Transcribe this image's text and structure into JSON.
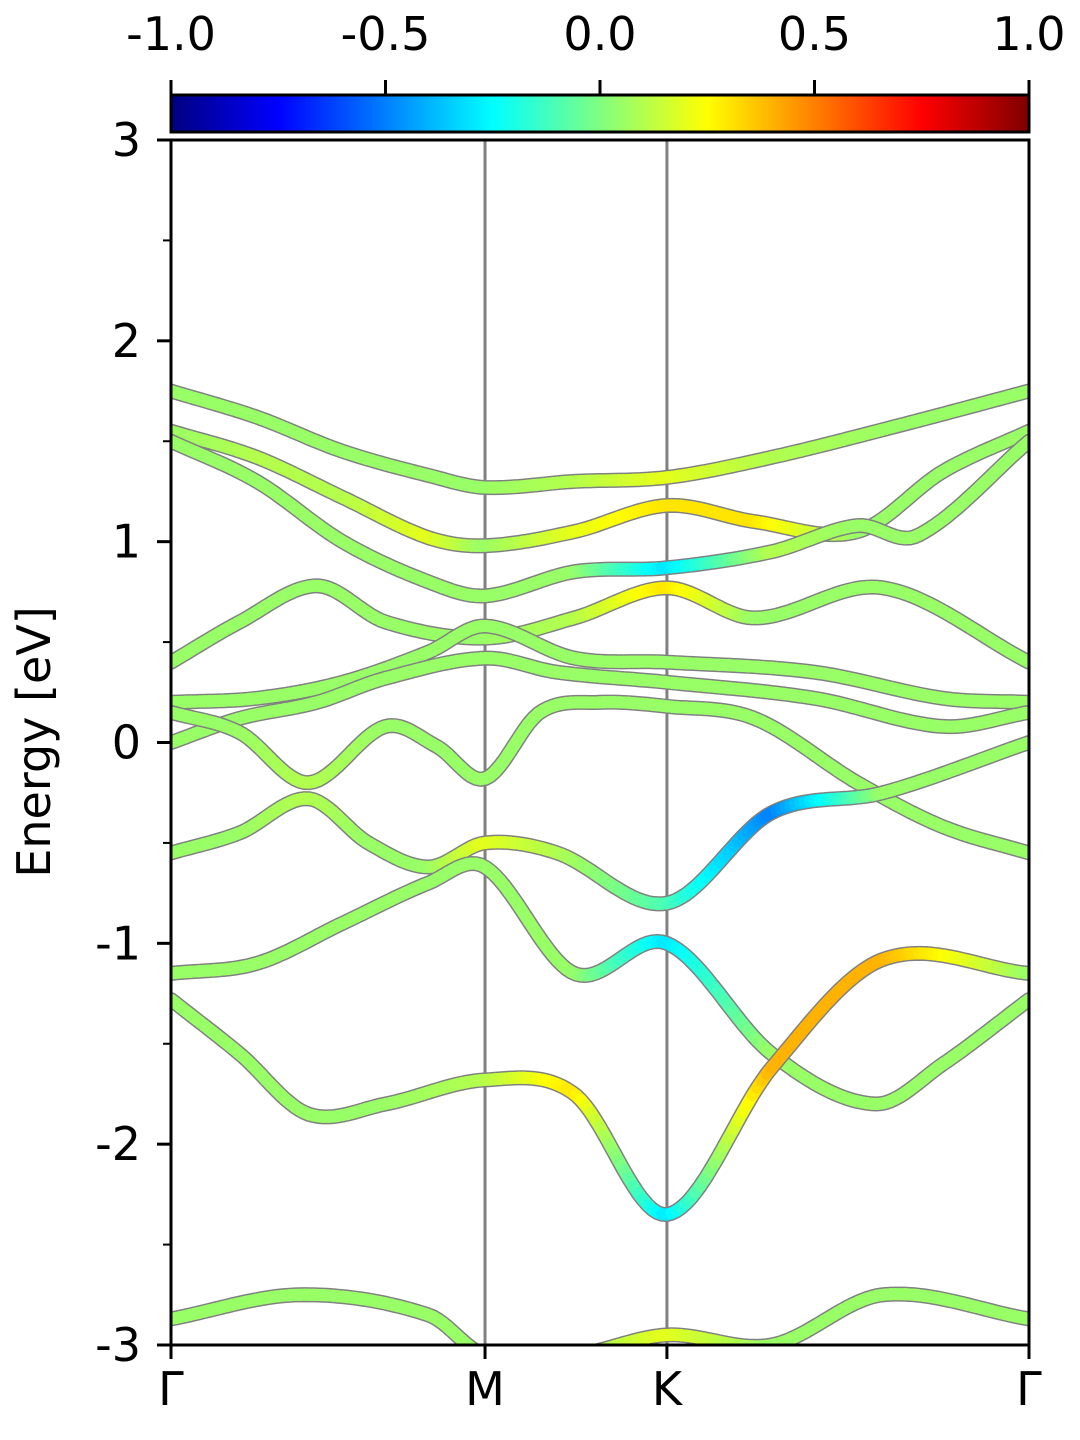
{
  "chart_data": {
    "type": "line",
    "ylabel": "Energy [eV]",
    "ylim": [
      -3,
      3
    ],
    "y_major_ticks": [
      -3,
      -2,
      -1,
      0,
      1,
      2,
      3
    ],
    "y_minor_ticks": [
      -2.5,
      -1.5,
      -0.5,
      0.5,
      1.5,
      2.5
    ],
    "y_tick_labels": [
      "-3",
      "-2",
      "-1",
      "0",
      "1",
      "2",
      "3"
    ],
    "kpath": {
      "positions": [
        0.0,
        0.366,
        0.578,
        1.0
      ],
      "labels": [
        "Γ",
        "M",
        "K",
        "Γ"
      ]
    },
    "colorbar": {
      "colormap": "jet",
      "range": [
        -1.0,
        1.0
      ],
      "ticks": [
        -1.0,
        -0.5,
        0.0,
        0.5,
        1.0
      ],
      "tick_labels": [
        "-1.0",
        "-0.5",
        "0.0",
        "0.5",
        "1.0"
      ]
    },
    "line_style": {
      "width_eV": 0.06,
      "edge_color": "#808080",
      "neutral_value": 0.05
    },
    "grid": false,
    "series": [
      {
        "x": [
          0,
          0.1,
          0.2,
          0.3,
          0.366,
          0.47,
          0.578,
          0.7,
          0.85,
          1.0
        ],
        "y": [
          1.75,
          1.62,
          1.45,
          1.33,
          1.27,
          1.3,
          1.32,
          1.42,
          1.58,
          1.75
        ],
        "c": [
          0.05,
          0.05,
          0.05,
          0.05,
          0.05,
          0.1,
          0.2,
          0.1,
          0.05,
          0.05
        ]
      },
      {
        "x": [
          0,
          0.1,
          0.2,
          0.3,
          0.366,
          0.47,
          0.578,
          0.68,
          0.8,
          0.9,
          1.0
        ],
        "y": [
          1.55,
          1.42,
          1.22,
          1.02,
          0.98,
          1.05,
          1.18,
          1.1,
          1.05,
          1.35,
          1.55
        ],
        "c": [
          0.05,
          0.1,
          0.1,
          0.2,
          0.05,
          0.2,
          0.3,
          0.3,
          0.05,
          0.05,
          0.05
        ]
      },
      {
        "x": [
          0,
          0.1,
          0.2,
          0.3,
          0.366,
          0.47,
          0.578,
          0.7,
          0.8,
          0.87,
          1.0
        ],
        "y": [
          1.5,
          1.3,
          1.0,
          0.8,
          0.73,
          0.85,
          0.87,
          0.95,
          1.08,
          1.03,
          1.5
        ],
        "c": [
          0.05,
          0.05,
          0.05,
          0.05,
          0.05,
          0.05,
          -0.3,
          0.1,
          0.05,
          0.05,
          0.05
        ]
      },
      {
        "x": [
          0,
          0.08,
          0.17,
          0.25,
          0.366,
          0.47,
          0.578,
          0.68,
          0.83,
          1.0
        ],
        "y": [
          0.4,
          0.6,
          0.78,
          0.6,
          0.52,
          0.62,
          0.77,
          0.62,
          0.77,
          0.4
        ],
        "c": [
          0.05,
          0.05,
          0.05,
          0.05,
          0.05,
          0.1,
          0.3,
          0.05,
          0.05,
          0.05
        ]
      },
      {
        "x": [
          0,
          0.1,
          0.2,
          0.3,
          0.366,
          0.47,
          0.578,
          0.75,
          0.9,
          1.0
        ],
        "y": [
          0.2,
          0.22,
          0.3,
          0.45,
          0.58,
          0.42,
          0.4,
          0.35,
          0.22,
          0.2
        ],
        "c": [
          0.05,
          0.05,
          0.05,
          0.05,
          0.05,
          0.05,
          0.05,
          0.05,
          0.05,
          0.05
        ]
      },
      {
        "x": [
          0,
          0.08,
          0.17,
          0.25,
          0.366,
          0.45,
          0.578,
          0.75,
          0.9,
          1.0
        ],
        "y": [
          0.0,
          0.12,
          0.2,
          0.32,
          0.42,
          0.35,
          0.3,
          0.22,
          0.08,
          0.15
        ],
        "c": [
          0.05,
          0.05,
          0.05,
          0.05,
          0.05,
          0.05,
          0.05,
          0.05,
          0.05,
          0.05
        ]
      },
      {
        "x": [
          0,
          0.08,
          0.16,
          0.25,
          0.31,
          0.366,
          0.43,
          0.5,
          0.578,
          0.68,
          0.8,
          0.9,
          1.0
        ],
        "y": [
          0.15,
          0.05,
          -0.2,
          0.08,
          -0.02,
          -0.18,
          0.15,
          0.2,
          0.18,
          0.12,
          -0.2,
          -0.42,
          -0.55
        ],
        "c": [
          0.05,
          0.05,
          0.1,
          0.05,
          0.05,
          0.05,
          0.05,
          0.05,
          0.05,
          0.05,
          0.05,
          0.05,
          0.05
        ]
      },
      {
        "x": [
          0,
          0.08,
          0.16,
          0.23,
          0.3,
          0.366,
          0.45,
          0.578,
          0.7,
          0.83,
          1.0
        ],
        "y": [
          -0.55,
          -0.45,
          -0.28,
          -0.5,
          -0.62,
          -0.5,
          -0.55,
          -0.8,
          -0.35,
          -0.25,
          0.0
        ],
        "c": [
          0.05,
          0.05,
          0.1,
          0.05,
          0.05,
          0.2,
          0.1,
          -0.1,
          -0.5,
          0.05,
          0.05
        ]
      },
      {
        "x": [
          0,
          0.1,
          0.2,
          0.3,
          0.366,
          0.47,
          0.578,
          0.7,
          0.82,
          0.9,
          1.0
        ],
        "y": [
          -1.15,
          -1.1,
          -0.9,
          -0.7,
          -0.62,
          -1.15,
          -1.0,
          -1.55,
          -1.8,
          -1.6,
          -1.28
        ],
        "c": [
          0.05,
          0.05,
          0.05,
          0.05,
          0.05,
          0.05,
          -0.3,
          0.05,
          0.05,
          0.05,
          0.05
        ]
      },
      {
        "x": [
          0,
          0.08,
          0.16,
          0.25,
          0.366,
          0.47,
          0.578,
          0.7,
          0.83,
          1.0
        ],
        "y": [
          -1.28,
          -1.55,
          -1.85,
          -1.8,
          -1.68,
          -1.75,
          -2.35,
          -1.62,
          -1.08,
          -1.15
        ],
        "c": [
          0.05,
          0.05,
          0.05,
          0.05,
          0.1,
          0.3,
          -0.3,
          0.4,
          0.4,
          0.05
        ]
      },
      {
        "x": [
          0,
          0.15,
          0.3,
          0.366,
          0.47,
          0.578,
          0.7,
          0.83,
          1.0
        ],
        "y": [
          -2.87,
          -2.75,
          -2.85,
          -3.05,
          -3.05,
          -2.95,
          -3.0,
          -2.75,
          -2.87
        ],
        "c": [
          0.05,
          0.05,
          0.05,
          0.05,
          0.05,
          0.2,
          0.05,
          0.05,
          0.05
        ]
      }
    ]
  }
}
